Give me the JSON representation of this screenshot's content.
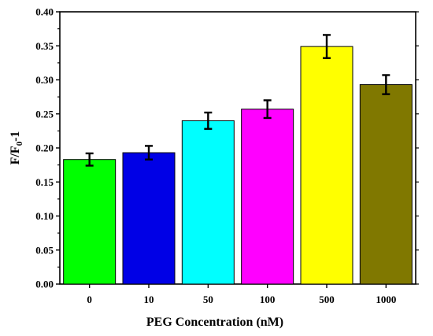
{
  "chart_data": {
    "type": "bar",
    "categories": [
      "0",
      "10",
      "50",
      "100",
      "500",
      "1000"
    ],
    "values": [
      0.183,
      0.193,
      0.24,
      0.257,
      0.349,
      0.293
    ],
    "errors": [
      0.009,
      0.01,
      0.012,
      0.013,
      0.017,
      0.014
    ],
    "colors": [
      "#00ff00",
      "#0000e6",
      "#00ffff",
      "#ff00ff",
      "#ffff00",
      "#807800"
    ],
    "xlabel": "PEG Concentration (nM)",
    "ylabel": {
      "main": "F/F",
      "sub": "0",
      "suffix": "-1"
    },
    "ylim": [
      0,
      0.4
    ],
    "yticks": [
      "0.00",
      "0.05",
      "0.10",
      "0.15",
      "0.20",
      "0.25",
      "0.30",
      "0.35",
      "0.40"
    ],
    "grid": false,
    "legend": "none"
  }
}
